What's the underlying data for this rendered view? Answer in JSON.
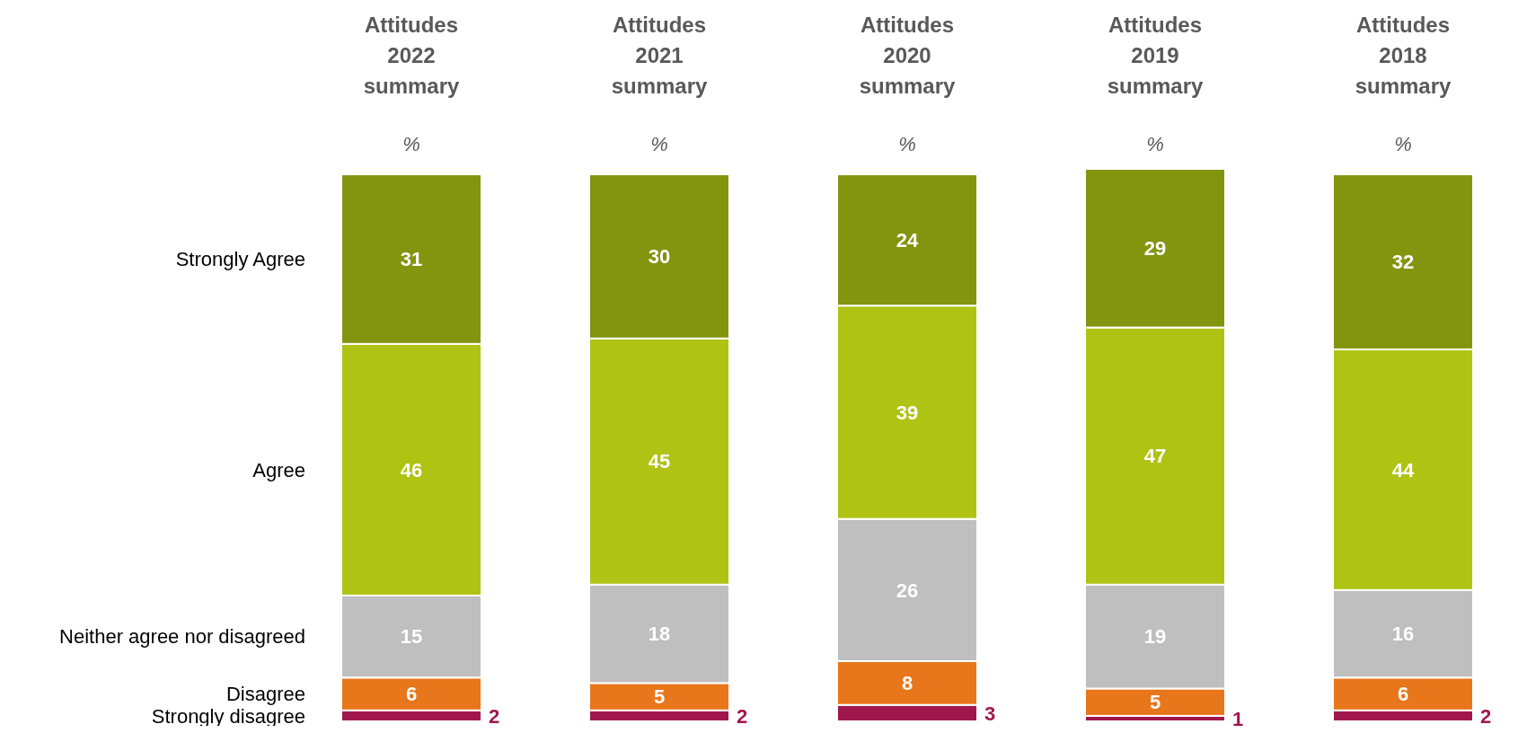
{
  "chart_data": {
    "type": "bar",
    "stacked": true,
    "categories": [
      "Attitudes 2022 summary",
      "Attitudes 2021 summary",
      "Attitudes 2020 summary",
      "Attitudes 2019 summary",
      "Attitudes 2018 summary"
    ],
    "series": [
      {
        "name": "Strongly disagree",
        "color": "#a0174e",
        "values": [
          2,
          2,
          3,
          1,
          2
        ]
      },
      {
        "name": "Disagree",
        "color": "#e8761a",
        "values": [
          6,
          5,
          8,
          5,
          6
        ]
      },
      {
        "name": "Neither agree nor disagreed",
        "color": "#bfbfbf",
        "values": [
          15,
          18,
          26,
          19,
          16
        ]
      },
      {
        "name": "Agree",
        "color": "#aec314",
        "values": [
          46,
          45,
          39,
          47,
          44
        ]
      },
      {
        "name": "Strongly Agree",
        "color": "#83940f",
        "values": [
          31,
          30,
          24,
          29,
          32
        ]
      }
    ],
    "annotations": [
      "%",
      "%",
      "%",
      "%",
      "%"
    ],
    "data_labels": true
  }
}
